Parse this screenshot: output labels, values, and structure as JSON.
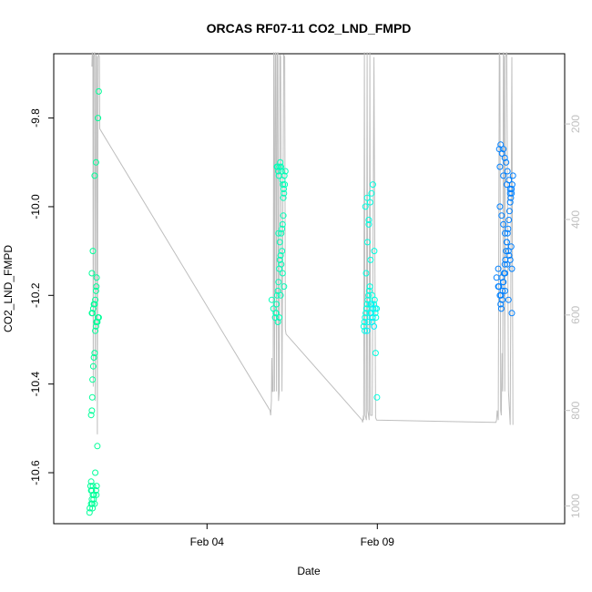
{
  "chart_data": {
    "type": "scatter",
    "title": "ORCAS RF07-11 CO2_LND_FMPD",
    "xlabel": "Date",
    "ylabel": "CO2_LND_FMPD",
    "x_ticks": [
      {
        "label": "Feb 04",
        "value": 4.0
      },
      {
        "label": "Feb 09",
        "value": 9.0
      }
    ],
    "y_ticks": [
      "-10.6",
      "-10.4",
      "-10.2",
      "-10.0",
      "-9.8"
    ],
    "y_tick_values": [
      -10.6,
      -10.4,
      -10.2,
      -10.0,
      -9.8
    ],
    "y2_ticks": [
      "200",
      "400",
      "600",
      "800",
      "1000"
    ],
    "y2_tick_values": [
      200,
      400,
      600,
      800,
      1000
    ],
    "xlim": [
      -0.5,
      14.5
    ],
    "ylim": [
      -10.715,
      -9.655
    ],
    "y2lim": [
      1037,
      53
    ],
    "grid": false,
    "colors": {
      "flight1": "#00FF99",
      "flight2": "#00FFB8",
      "flight3": "#00FFE0",
      "flight4": "#00F0FF",
      "flight5": "#0080FF",
      "altitude_line": "#BEBEBE"
    },
    "series": [
      {
        "color": "#00FF99",
        "x": [
          0.55,
          0.56,
          0.6,
          0.62,
          0.65,
          0.6,
          0.58,
          0.6,
          0.62,
          0.63,
          0.64,
          0.65,
          0.67,
          0.68,
          0.7,
          0.72,
          0.74,
          0.75,
          0.76,
          0.78,
          0.6,
          0.62,
          0.63,
          0.64,
          0.66,
          0.68,
          0.7,
          0.72,
          0.74,
          0.75,
          0.76,
          0.78,
          0.8,
          0.82,
          0.62,
          0.64,
          0.66,
          0.68,
          0.7,
          0.72,
          0.74,
          0.75,
          0.76,
          0.62,
          0.65,
          0.7,
          0.74,
          0.8,
          0.82
        ],
        "y": [
          -10.69,
          -10.68,
          -10.67,
          -10.66,
          -10.65,
          -10.64,
          -10.63,
          -10.62,
          -10.64,
          -10.67,
          -10.68,
          -10.63,
          -10.66,
          -10.65,
          -10.67,
          -10.6,
          -10.64,
          -10.65,
          -10.63,
          -10.54,
          -10.47,
          -10.46,
          -10.43,
          -10.39,
          -10.36,
          -10.34,
          -10.33,
          -10.28,
          -10.27,
          -10.26,
          -10.26,
          -10.26,
          -10.25,
          -10.25,
          -10.24,
          -10.24,
          -10.23,
          -10.22,
          -10.22,
          -10.21,
          -10.19,
          -10.18,
          -10.16,
          -10.15,
          -10.1,
          -9.93,
          -9.9,
          -9.8,
          -9.74
        ]
      },
      {
        "color": "#00FFB8",
        "x": [
          5.9,
          5.95,
          6.0,
          6.02,
          6.04,
          6.06,
          6.08,
          6.1,
          6.12,
          6.14,
          6.16,
          6.18,
          6.2,
          6.22,
          6.24,
          6.26,
          6.28,
          6.3,
          6.05,
          6.07,
          6.09,
          6.11,
          6.13,
          6.15,
          6.17,
          6.19,
          6.21,
          6.23,
          6.25,
          6.27,
          6.1,
          6.14,
          6.18,
          6.22,
          6.26,
          6.03,
          6.08,
          6.12,
          6.16,
          6.2,
          6.24
        ],
        "y": [
          -10.21,
          -10.23,
          -10.25,
          -10.24,
          -10.22,
          -10.2,
          -10.19,
          -10.17,
          -10.14,
          -10.12,
          -10.11,
          -10.06,
          -10.05,
          -10.04,
          -10.02,
          -9.97,
          -9.95,
          -9.92,
          -9.91,
          -9.91,
          -9.92,
          -9.93,
          -9.91,
          -9.9,
          -9.91,
          -9.92,
          -9.94,
          -9.95,
          -9.96,
          -9.93,
          -10.06,
          -10.08,
          -10.13,
          -10.15,
          -10.18,
          -10.24,
          -10.26,
          -10.25,
          -10.2,
          -10.1,
          -9.98
        ]
      },
      {
        "color": "#00FFE0",
        "x": [
          8.6,
          8.62,
          8.64,
          8.66,
          8.68,
          8.7,
          8.72,
          8.74,
          8.76,
          8.78,
          8.8,
          8.82,
          8.84,
          8.86,
          8.88,
          8.9,
          8.92,
          8.94,
          8.96,
          8.98,
          8.63,
          8.67,
          8.71,
          8.75,
          8.79,
          8.83,
          8.87,
          8.91,
          8.95,
          8.99,
          8.65,
          8.7,
          8.75,
          8.8,
          8.85
        ],
        "y": [
          -10.27,
          -10.26,
          -10.25,
          -10.24,
          -10.23,
          -10.22,
          -10.21,
          -10.2,
          -10.19,
          -10.18,
          -10.22,
          -10.24,
          -10.26,
          -10.25,
          -10.23,
          -10.22,
          -10.21,
          -10.24,
          -10.25,
          -10.23,
          -10.28,
          -10.15,
          -10.08,
          -10.03,
          -9.99,
          -9.97,
          -9.95,
          -10.1,
          -10.33,
          -10.43,
          -10.0,
          -9.98,
          -10.04,
          -10.12,
          -10.2
        ]
      },
      {
        "color": "#00F0FF",
        "x": [
          8.7,
          8.74,
          8.78,
          8.82,
          8.86,
          8.9,
          8.94
        ],
        "y": [
          -10.28,
          -10.26,
          -10.24,
          -10.22,
          -10.25,
          -10.27,
          -10.23
        ]
      },
      {
        "color": "#0080FF",
        "x": [
          12.5,
          12.55,
          12.6,
          12.62,
          12.64,
          12.66,
          12.68,
          12.7,
          12.72,
          12.74,
          12.76,
          12.78,
          12.8,
          12.82,
          12.84,
          12.86,
          12.88,
          12.9,
          12.92,
          12.94,
          12.96,
          12.98,
          12.58,
          12.62,
          12.66,
          12.7,
          12.74,
          12.78,
          12.82,
          12.86,
          12.9,
          12.94,
          12.6,
          12.65,
          12.7,
          12.75,
          12.8,
          12.85,
          12.9,
          12.95,
          12.57,
          12.63,
          12.69,
          12.75,
          12.81,
          12.87,
          12.93,
          12.6,
          12.7,
          12.8,
          12.9,
          12.55,
          12.65,
          12.75,
          12.85,
          12.95
        ],
        "y": [
          -10.16,
          -10.18,
          -10.2,
          -10.22,
          -10.23,
          -10.21,
          -10.19,
          -10.17,
          -10.15,
          -10.13,
          -10.12,
          -10.1,
          -10.08,
          -10.06,
          -10.05,
          -10.03,
          -10.01,
          -9.99,
          -9.98,
          -9.96,
          -9.95,
          -9.93,
          -9.87,
          -9.86,
          -9.88,
          -9.87,
          -9.89,
          -9.9,
          -9.92,
          -9.94,
          -9.96,
          -9.97,
          -10.0,
          -10.02,
          -10.04,
          -10.06,
          -10.08,
          -10.1,
          -10.12,
          -10.14,
          -10.18,
          -10.2,
          -10.17,
          -10.15,
          -10.13,
          -10.11,
          -10.09,
          -9.91,
          -9.93,
          -9.95,
          -9.97,
          -10.14,
          -10.16,
          -10.19,
          -10.21,
          -10.24
        ]
      }
    ],
    "altitude_trace": {
      "x": [
        0.62,
        0.63,
        0.64,
        0.65,
        0.66,
        0.67,
        0.7,
        0.72,
        0.74,
        0.76,
        0.78,
        0.8,
        0.82,
        0.84,
        0.85,
        5.85,
        5.87,
        5.89,
        5.9,
        5.92,
        5.94,
        5.96,
        5.98,
        6.0,
        6.02,
        6.04,
        6.06,
        6.08,
        6.1,
        6.12,
        6.14,
        6.16,
        6.2,
        6.25,
        6.28,
        6.3,
        6.32,
        8.55,
        8.57,
        8.59,
        8.6,
        8.62,
        8.64,
        8.66,
        8.68,
        8.7,
        8.72,
        8.74,
        8.76,
        8.78,
        8.8,
        8.85,
        8.9,
        8.95,
        8.98,
        12.45,
        12.48,
        12.5,
        12.52,
        12.55,
        12.58,
        12.6,
        12.62,
        12.64,
        12.66,
        12.68,
        12.7,
        12.72,
        12.74,
        12.76,
        12.8,
        12.85,
        12.9,
        12.95,
        12.98
      ],
      "y": [
        80,
        50,
        80,
        55,
        750,
        60,
        50,
        780,
        55,
        60,
        850,
        60,
        55,
        60,
        210,
        800,
        810,
        780,
        690,
        760,
        760,
        50,
        760,
        55,
        50,
        760,
        55,
        50,
        780,
        760,
        55,
        60,
        760,
        55,
        60,
        630,
        640,
        820,
        825,
        810,
        820,
        50,
        810,
        815,
        820,
        50,
        800,
        810,
        820,
        50,
        810,
        810,
        60,
        815,
        820,
        825,
        825,
        820,
        800,
        820,
        50,
        60,
        800,
        810,
        680,
        760,
        50,
        60,
        760,
        60,
        50,
        760,
        830,
        60,
        830
      ]
    }
  }
}
